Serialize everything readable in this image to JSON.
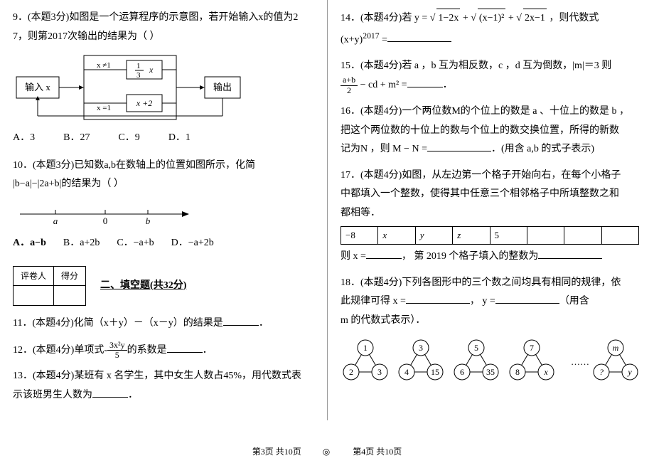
{
  "left": {
    "q9": {
      "line1": "9．(本题3分)如图是一个运算程序的示意图，若开始输入x的值为2",
      "line2": "7，则第2017次输出的结果为（  ）",
      "flow": {
        "in": "输入 x",
        "out": "输出",
        "cond1": "x ≠1",
        "cond2": "x =1",
        "top": "x",
        "topFrac": {
          "n": "1",
          "d": "3"
        },
        "bottom": "x +2"
      },
      "opts": {
        "A": "A．3",
        "B": "B．27",
        "C": "C．9",
        "D": "D．1"
      }
    },
    "q10": {
      "line1": "10．(本题3分)已知数a,b在数轴上的位置如图所示，化简",
      "line2_pre": "",
      "line2_expr": "|b−a|−|2a+b|",
      "line2_post": "的结果为（  ）",
      "numline": {
        "labels": [
          "a",
          "0",
          "b"
        ]
      },
      "opts": {
        "A": "A．a−b",
        "B": "B．a+2b",
        "C": "C．−a+b",
        "D": "D．−a+2b"
      }
    },
    "score": {
      "c1": "评卷人",
      "c2": "得分"
    },
    "section2": "二、填空题(共32分)",
    "q11": {
      "text_a": "11．(本题4分)化简（x＋y）－（x－y）的结果是",
      "text_b": "．"
    },
    "q12": {
      "text_a": "12．(本题4分)单项式-",
      "frac": {
        "n": "3x²y",
        "d": "5"
      },
      "text_b": "的系数是",
      "text_c": "．"
    },
    "q13": {
      "line1": "13．(本题4分)某班有 x 名学生，其中女生人数占45%，用代数式表",
      "line2_a": "示该班男生人数为",
      "line2_b": "．"
    }
  },
  "right": {
    "q14": {
      "text_a": "14．(本题4分)若 y =",
      "r1": "1−2x",
      "plus1": "+",
      "r2": "(x−1)²",
      "plus2": "+",
      "r3": "2x−1",
      "text_b": "，则代数式",
      "line2_a": "(x+y)",
      "line2_sup": "2017",
      "line2_b": " ="
    },
    "q15": {
      "line1": "15．(本题4分)若 a ，b 互为相反数，c ，d 互为倒数，|m|＝3 则",
      "expr_frac": {
        "n": "a+b",
        "d": "2"
      },
      "expr_mid": "− cd + m² =",
      "expr_end": "．"
    },
    "q16": {
      "line1": "16．(本题4分)一个两位数M的个位上的数是 a 、十位上的数是 b ，",
      "line2": "把这个两位数的十位上的数与个位上的数交换位置，所得的新数",
      "line3_a": "记为N ，则 M − N =",
      "line3_b": "．(用含 a,b 的式子表示)"
    },
    "q17": {
      "line1": "17．(本题4分)如图，从左边第一个格子开始向右，在每个小格子",
      "line2": "中都填入一个整数，使得其中任意三个相邻格子中所填整数之和",
      "line3": "都相等．",
      "cells": [
        "−8",
        "x",
        "y",
        "z",
        "5",
        "",
        "",
        ""
      ],
      "line4_a": "则 x =",
      "line4_b": "，  第 2019 个格子填入的整数为"
    },
    "q18": {
      "line1": "18．(本题4分)下列各图形中的三个数之间均具有相同的规律，依",
      "line2_a": "此规律可得 x =",
      "line2_b": "，  y =",
      "line2_c": "（用含",
      "line3": "m 的代数式表示）．",
      "groups": [
        {
          "t": "1",
          "l": "2",
          "r": "3"
        },
        {
          "t": "3",
          "l": "4",
          "r": "15"
        },
        {
          "t": "5",
          "l": "6",
          "r": "35"
        },
        {
          "t": "7",
          "l": "8",
          "r": "x"
        },
        {
          "t": "m",
          "l": "?",
          "r": "y"
        }
      ],
      "dots": "……"
    }
  },
  "footer": {
    "left": "第3页 共10页",
    "sep": "◎",
    "right": "第4页 共10页"
  }
}
